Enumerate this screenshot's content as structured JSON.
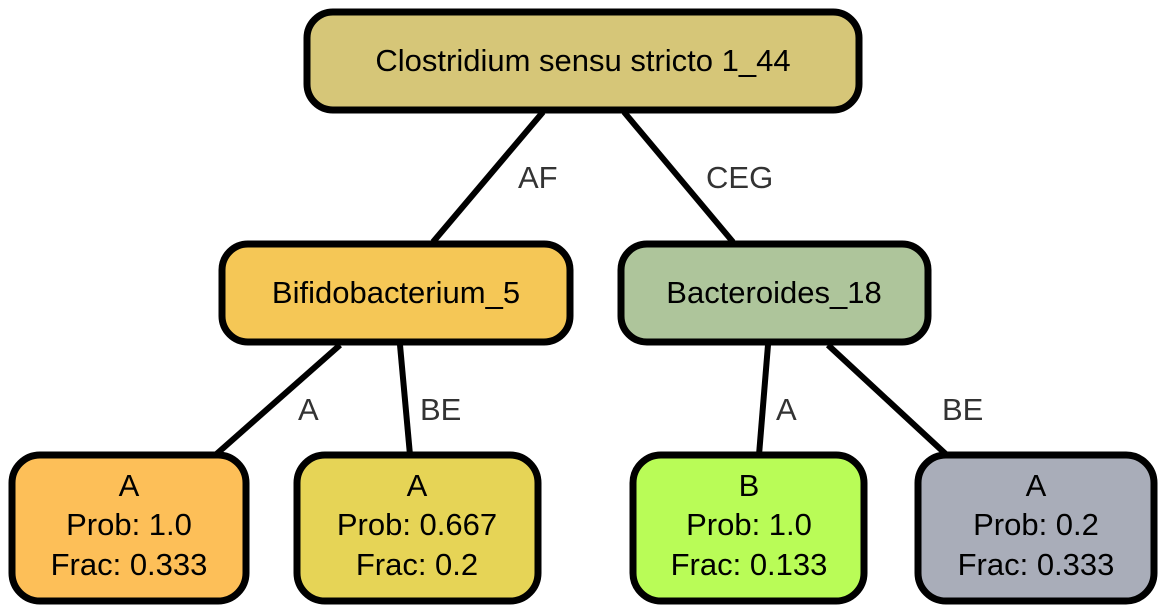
{
  "nodes": {
    "root": {
      "title": "Clostridium sensu stricto 1_44",
      "fill": "#d6c678"
    },
    "left": {
      "title": "Bifidobacterium_5",
      "fill": "#f5c756"
    },
    "right": {
      "title": "Bacteroides_18",
      "fill": "#aec59b"
    },
    "leaf1": {
      "title": "A",
      "prob": "Prob: 1.0",
      "frac": "Frac: 0.333",
      "fill": "#fdbf58"
    },
    "leaf2": {
      "title": "A",
      "prob": "Prob: 0.667",
      "frac": "Frac: 0.2",
      "fill": "#e6d456"
    },
    "leaf3": {
      "title": "B",
      "prob": "Prob: 1.0",
      "frac": "Frac: 0.133",
      "fill": "#b9fc57"
    },
    "leaf4": {
      "title": "A",
      "prob": "Prob: 0.2",
      "frac": "Frac: 0.333",
      "fill": "#a9adb9"
    }
  },
  "edges": {
    "root_left": "AF",
    "root_right": "CEG",
    "left_leaf1": "A",
    "left_leaf2": "BE",
    "right_leaf3": "A",
    "right_leaf4": "BE"
  }
}
